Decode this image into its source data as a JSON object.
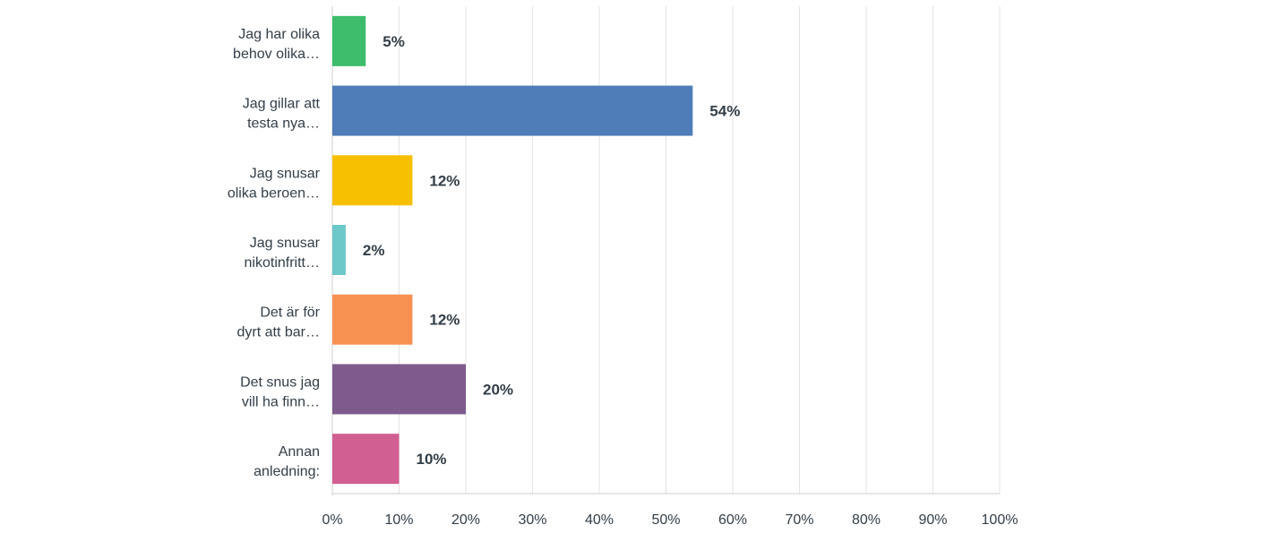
{
  "chart_data": {
    "type": "bar",
    "orientation": "horizontal",
    "categories": [
      [
        "Jag har olika",
        "behov olika…"
      ],
      [
        "Jag gillar att",
        "testa nya…"
      ],
      [
        "Jag snusar",
        "olika beroen…"
      ],
      [
        "Jag snusar",
        "nikotinfritt…"
      ],
      [
        "Det är för",
        "dyrt att bar…"
      ],
      [
        "Det snus jag",
        "vill ha finn…"
      ],
      [
        "Annan",
        "anledning:"
      ]
    ],
    "values": [
      5,
      54,
      12,
      2,
      12,
      20,
      10
    ],
    "value_labels": [
      "5%",
      "54%",
      "12%",
      "2%",
      "12%",
      "20%",
      "10%"
    ],
    "colors": [
      "#3dbd6b",
      "#4f7db7",
      "#f6c000",
      "#6cc8c9",
      "#f79152",
      "#7d5c8d",
      "#d25f92"
    ],
    "x_ticks": [
      "0%",
      "10%",
      "20%",
      "30%",
      "40%",
      "50%",
      "60%",
      "70%",
      "80%",
      "90%",
      "100%"
    ],
    "xlim": [
      0,
      100
    ],
    "grid": true,
    "title": "",
    "xlabel": "",
    "ylabel": ""
  }
}
